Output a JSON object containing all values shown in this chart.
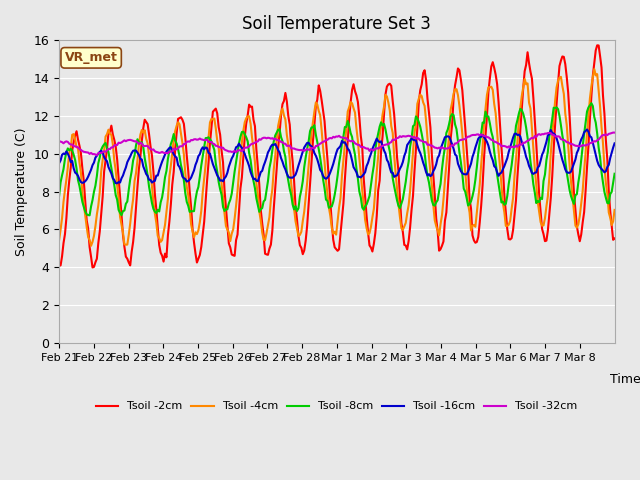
{
  "title": "Soil Temperature Set 3",
  "xlabel": "Time",
  "ylabel": "Soil Temperature (C)",
  "ylim": [
    0,
    16
  ],
  "yticks": [
    0,
    2,
    4,
    6,
    8,
    10,
    12,
    14,
    16
  ],
  "background_color": "#e8e8e8",
  "plot_bg_color": "#e8e8e8",
  "annotation_text": "VR_met",
  "annotation_color": "#8B4513",
  "annotation_bg": "#ffffcc",
  "series_names": [
    "Tsoil -2cm",
    "Tsoil -4cm",
    "Tsoil -8cm",
    "Tsoil -16cm",
    "Tsoil -32cm"
  ],
  "series_colors": [
    "#ff0000",
    "#ff8800",
    "#00cc00",
    "#0000cc",
    "#cc00cc"
  ],
  "series_lw": [
    1.5,
    1.5,
    1.5,
    1.5,
    1.5
  ],
  "xtick_labels": [
    "Feb 21",
    "Feb 22",
    "Feb 23",
    "Feb 24",
    "Feb 25",
    "Feb 26",
    "Feb 27",
    "Feb 28",
    "Mar 1",
    "Mar 2",
    "Mar 3",
    "Mar 4",
    "Mar 5",
    "Mar 6",
    "Mar 7",
    "Mar 8"
  ],
  "num_days": 16,
  "pts_per_day": 24
}
